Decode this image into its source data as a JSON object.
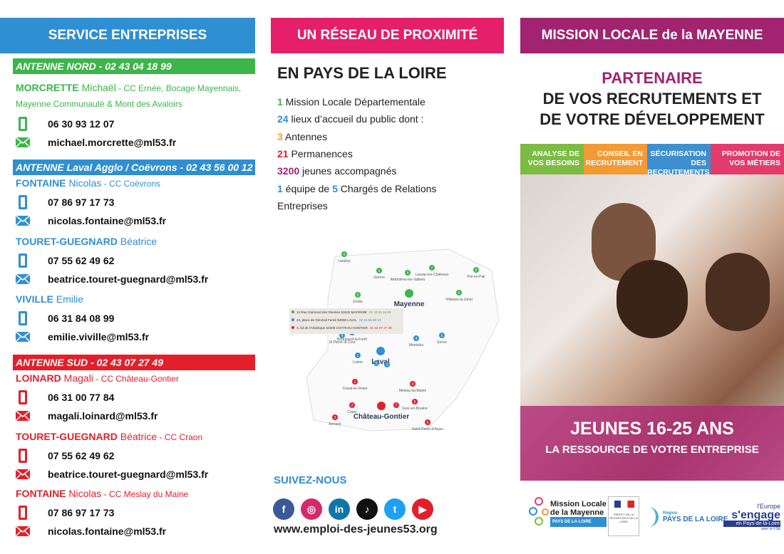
{
  "colors": {
    "green": "#3cb54a",
    "blue": "#2f8fd3",
    "red": "#e3202a",
    "pink": "#e51f6a",
    "purple": "#a2236f",
    "orange": "#f39a34"
  },
  "col1": {
    "title": "SERVICE ENTREPRISES",
    "sections": [
      {
        "bar": "ANTENNE NORD - 02 43 04 18 99",
        "color": "#3cb54a",
        "contacts": [
          {
            "last": "MORCRETTE",
            "first": "Michaël",
            "area": " - CC Ernée, Bocage Mayennais,",
            "area2": "Mayenne Communauté & Mont des Avaloirs",
            "phone": "06 30 93 12 07",
            "email": "michael.morcrette@ml53.fr"
          }
        ]
      },
      {
        "bar": "ANTENNE Laval Agglo / Coëvrons - 02 43 56 00 12",
        "color": "#2f8fd3",
        "contacts": [
          {
            "last": "FONTAINE",
            "first": "Nicolas",
            "area": " - CC Coëvrons",
            "phone": "07 86 97 17 73",
            "email": "nicolas.fontaine@ml53.fr"
          },
          {
            "last": "TOURET-GUEGNARD",
            "first": "Béatrice",
            "area": "",
            "phone": "07 55 62 49 62",
            "email": "beatrice.touret-guegnard@ml53.fr"
          },
          {
            "last": "VIVILLE",
            "first": "Emilie",
            "area": "",
            "phone": "06 31 84 08 99",
            "email": "emilie.viville@ml53.fr"
          }
        ]
      },
      {
        "bar": "ANTENNE SUD - 02 43 07 27 49",
        "color": "#e3202a",
        "contacts": [
          {
            "last": "LOINARD",
            "first": "Magali",
            "area": " - CC Château-Gontier",
            "phone": "06 31 00 77 84",
            "email": "magali.loinard@ml53.fr"
          },
          {
            "last": "TOURET-GUEGNARD",
            "first": "Béatrice",
            "area": " - CC Craon",
            "phone": "07 55 62 49 62",
            "email": "beatrice.touret-guegnard@ml53.fr"
          },
          {
            "last": "FONTAINE",
            "first": "Nicolas",
            "area": " - CC Meslay du Maine",
            "phone": "07 86 97 17 73",
            "email": "nicolas.fontaine@ml53.fr"
          }
        ]
      }
    ]
  },
  "col2": {
    "title": "UN RÉSEAU DE PROXIMITÉ",
    "subtitle": "EN PAYS DE LA LOIRE",
    "stats": [
      {
        "n": "1",
        "t": " Mission Locale Départementale",
        "c": "#3cb54a"
      },
      {
        "n": "24",
        "t": " lieux d’accueil du public dont :",
        "c": "#2f8fd3"
      },
      {
        "n": "3",
        "t": " Antennes",
        "c": "#f39a34"
      },
      {
        "n": "21",
        "t": " Permanences",
        "c": "#e3202a"
      },
      {
        "n": "3200",
        "t": " jeunes accompagnés",
        "c": "#a2236f"
      },
      {
        "n": "1",
        "t": " équipe de ",
        "n2": "5",
        "t2": " Chargés de Relations",
        "c": "#2f8fd3"
      }
    ],
    "stats_last": "Entreprises",
    "map": {
      "legend": [
        {
          "addr": "14 Rue Guimond des Riveries 53100 MAYENNE",
          "tel": "02 43 04 18 99",
          "color": "#3cb54a"
        },
        {
          "addr": "23, place de Général Ferrié 53000 LAVAL",
          "tel": "02 43 56 00 12",
          "color": "#2f8fd3"
        },
        {
          "addr": "3, bd de l'Atlantique 53200 CHÂTEAU-GONTIER",
          "tel": "02 43 07 27 49",
          "color": "#e3202a"
        }
      ],
      "cities": [
        {
          "name": "Mayenne",
          "big": true,
          "color": "#3cb54a"
        },
        {
          "name": "Laval",
          "big": true,
          "color": "#2f8fd3"
        },
        {
          "name": "Château-Gontier",
          "big": true,
          "color": "#e3202a"
        },
        {
          "name": "Landivy",
          "n": "6",
          "color": "#3cb54a"
        },
        {
          "name": "Gorron",
          "n": "2",
          "color": "#3cb54a"
        },
        {
          "name": "Ambrières-les-Vallées",
          "n": "4",
          "color": "#3cb54a"
        },
        {
          "name": "Lassay-les-Châteaux",
          "n": "7",
          "color": "#3cb54a"
        },
        {
          "name": "Pré-en-Pail",
          "n": "8",
          "color": "#3cb54a"
        },
        {
          "name": "Ernée",
          "n": "3",
          "color": "#3cb54a"
        },
        {
          "name": "Villaines-la-Juhel",
          "n": "5",
          "color": "#3cb54a"
        },
        {
          "name": "St Pierre la Cour",
          "n": "6",
          "color": "#2f8fd3"
        },
        {
          "name": "Bourgneuf-la-Forêt",
          "n": "7",
          "color": "#2f8fd3"
        },
        {
          "name": "Montsûrs",
          "n": "4",
          "color": "#2f8fd3"
        },
        {
          "name": "Evron",
          "n": "5",
          "color": "#2f8fd3"
        },
        {
          "name": "Loiron",
          "n": "1",
          "color": "#2f8fd3"
        },
        {
          "name": "",
          "n": "2",
          "color": "#2f8fd3"
        },
        {
          "name": "",
          "n": "3",
          "color": "#2f8fd3"
        },
        {
          "name": "Cossé-le-Vivien",
          "n": "1",
          "color": "#e3202a"
        },
        {
          "name": "Meslay-du-Maine",
          "n": "4",
          "color": "#e3202a"
        },
        {
          "name": "Craon",
          "n": "2",
          "color": "#e3202a"
        },
        {
          "name": "",
          "n": "7",
          "color": "#e3202a"
        },
        {
          "name": "Grez-en-Bouère",
          "n": "5",
          "color": "#e3202a"
        },
        {
          "name": "Renazé",
          "n": "3",
          "color": "#e3202a"
        },
        {
          "name": "Saint-Denis-d'Anjou",
          "n": "6",
          "color": "#e3202a"
        }
      ]
    },
    "follow": "SUIVEZ-NOUS",
    "social": [
      {
        "icon": "facebook-icon",
        "g": "f",
        "c": "#3b5998"
      },
      {
        "icon": "instagram-icon",
        "g": "◎",
        "c": "#d6286d"
      },
      {
        "icon": "linkedin-icon",
        "g": "in",
        "c": "#0e76a8"
      },
      {
        "icon": "tiktok-icon",
        "g": "♪",
        "c": "#111"
      },
      {
        "icon": "twitter-icon",
        "g": "t",
        "c": "#1da1f2"
      },
      {
        "icon": "youtube-icon",
        "g": "▶",
        "c": "#e3202a"
      }
    ],
    "website": "www.emploi-des-jeunes53.org"
  },
  "col3": {
    "title": "MISSION LOCALE de la MAYENNE",
    "t1": "PARTENAIRE",
    "t2": "DE VOS RECRUTEMENTS ET",
    "t3": "DE VOTRE DÉVELOPPEMENT",
    "tags": [
      {
        "l1": "ANALYSE DE",
        "l2": "VOS BESOINS",
        "c": "#7dbb42"
      },
      {
        "l1": "CONSEIL EN",
        "l2": "RECRUTEMENT",
        "c": "#f39a34"
      },
      {
        "l1": "SÉCURISATION DES",
        "l2": "RECRUTEMENTS",
        "c": "#3d8fd0"
      },
      {
        "l1": "PROMOTION DE",
        "l2": "VOS MÉTIERS",
        "c": "#e23c6d"
      }
    ],
    "banner1": "JEUNES 16-25 ANS",
    "banner2": "LA RESSOURCE DE VOTRE ENTREPRISE",
    "logos": {
      "ml1": "Mission Locale",
      "ml2": "de la Mayenne",
      "ml3": "PAYS DE LA LOIRE",
      "prefet": "PRÉFET DE LA RÉGION PAYS DE LA LOIRE",
      "region1": "Région",
      "region2": "PAYS DE LA LOIRE",
      "eu1": "l'Europe",
      "eu2": "s'engage",
      "eu3": "en Pays-de-la-Loire",
      "eu4": "avec le FSE"
    }
  }
}
